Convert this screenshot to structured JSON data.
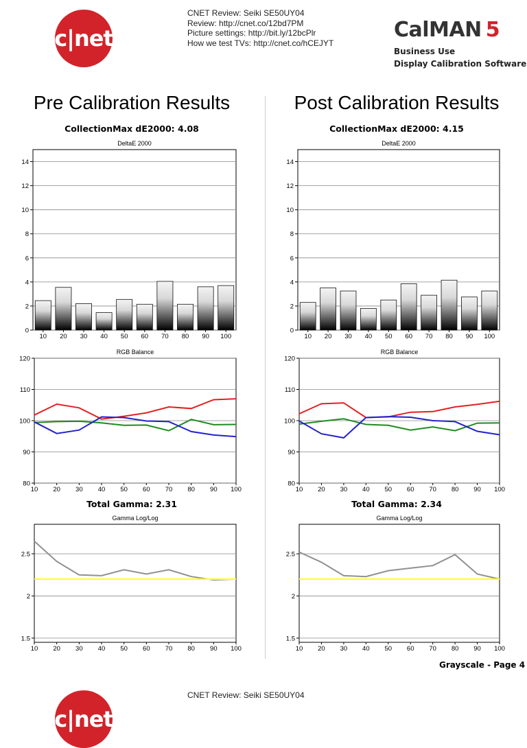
{
  "header": {
    "logo_text": "c|net",
    "lines": [
      "CNET Review: Seiki SE50UY04",
      "Review: http://cnet.co/12bd7PM",
      "Picture settings: http://bit.ly/12bcPlr",
      "How we test TVs: http://cnet.co/hCEJYT"
    ],
    "brand_word": "CalMAN",
    "brand_number": "5",
    "brand_sub1": "Business Use",
    "brand_sub2": "Display Calibration Software"
  },
  "pre": {
    "title": "Pre Calibration Results",
    "collection_max": "CollectionMax dE2000: 4.08",
    "total_gamma": "Total Gamma: 2.31"
  },
  "post": {
    "title": "Post Calibration Results",
    "collection_max": "CollectionMax dE2000: 4.15",
    "total_gamma": "Total Gamma: 2.34"
  },
  "footer": {
    "page_label": "Grayscale - Page 4",
    "lines": [
      "CNET Review: Seiki SE50UY04"
    ],
    "logo_text": "c|net"
  },
  "colors": {
    "red": "#e32020",
    "green": "#1f8a1f",
    "blue": "#2222cc",
    "gamma": "#909090",
    "target": "#ffff33"
  },
  "chart_data": [
    {
      "id": "pre-deltae",
      "type": "bar",
      "title": "DeltaE 2000",
      "categories": [
        "10",
        "20",
        "30",
        "40",
        "50",
        "60",
        "70",
        "80",
        "90",
        "100"
      ],
      "values": [
        2.45,
        3.55,
        2.2,
        1.45,
        2.55,
        2.15,
        4.05,
        2.15,
        3.6,
        3.7
      ],
      "ylim": [
        0,
        15
      ],
      "yticks": [
        0,
        2,
        4,
        6,
        8,
        10,
        12,
        14
      ]
    },
    {
      "id": "post-deltae",
      "type": "bar",
      "title": "DeltaE 2000",
      "categories": [
        "10",
        "20",
        "30",
        "40",
        "50",
        "60",
        "70",
        "80",
        "90",
        "100"
      ],
      "values": [
        2.3,
        3.5,
        3.25,
        1.8,
        2.5,
        3.85,
        2.9,
        4.15,
        2.75,
        3.25
      ],
      "ylim": [
        0,
        15
      ],
      "yticks": [
        0,
        2,
        4,
        6,
        8,
        10,
        12,
        14
      ]
    },
    {
      "id": "pre-rgb",
      "type": "line",
      "title": "RGB Balance",
      "x": [
        10,
        20,
        30,
        40,
        50,
        60,
        70,
        80,
        90,
        100
      ],
      "series": [
        {
          "color": "red",
          "values": [
            101.8,
            105.3,
            104.1,
            100.5,
            101.4,
            102.5,
            104.4,
            103.9,
            106.7,
            107.0
          ]
        },
        {
          "color": "green",
          "values": [
            99.4,
            99.7,
            99.8,
            99.3,
            98.5,
            98.6,
            96.8,
            100.4,
            98.7,
            98.8
          ]
        },
        {
          "color": "blue",
          "values": [
            99.6,
            95.9,
            97.0,
            101.2,
            101.0,
            99.9,
            99.7,
            96.5,
            95.4,
            94.9
          ]
        }
      ],
      "xlim": [
        10,
        100
      ],
      "ylim": [
        80,
        120
      ],
      "yticks": [
        80,
        90,
        100,
        110,
        120
      ]
    },
    {
      "id": "post-rgb",
      "type": "line",
      "title": "RGB Balance",
      "x": [
        10,
        20,
        30,
        40,
        50,
        60,
        70,
        80,
        90,
        100
      ],
      "series": [
        {
          "color": "red",
          "values": [
            102.2,
            105.4,
            105.7,
            101.0,
            101.2,
            102.7,
            102.9,
            104.4,
            105.2,
            106.2
          ]
        },
        {
          "color": "green",
          "values": [
            98.9,
            99.8,
            100.6,
            98.8,
            98.5,
            97.0,
            98.0,
            96.8,
            99.2,
            99.3
          ]
        },
        {
          "color": "blue",
          "values": [
            99.9,
            95.8,
            94.5,
            101.0,
            101.3,
            101.1,
            100.0,
            99.7,
            96.6,
            95.5
          ]
        }
      ],
      "xlim": [
        10,
        100
      ],
      "ylim": [
        80,
        120
      ],
      "yticks": [
        80,
        90,
        100,
        110,
        120
      ]
    },
    {
      "id": "pre-gamma",
      "type": "line",
      "title": "Gamma Log/Log",
      "x": [
        10,
        20,
        30,
        40,
        50,
        60,
        70,
        80,
        90,
        100
      ],
      "series": [
        {
          "color": "gamma",
          "values": [
            2.65,
            2.41,
            2.25,
            2.24,
            2.31,
            2.26,
            2.31,
            2.23,
            2.19,
            2.2
          ]
        },
        {
          "color": "target",
          "values": [
            2.2,
            2.2,
            2.2,
            2.2,
            2.2,
            2.2,
            2.2,
            2.2,
            2.2,
            2.2
          ]
        }
      ],
      "xlim": [
        10,
        100
      ],
      "ylim": [
        1.45,
        2.85
      ],
      "yticks": [
        1.5,
        2,
        2.5
      ],
      "ytick_labels": [
        "1.5",
        "2",
        "2.5"
      ]
    },
    {
      "id": "post-gamma",
      "type": "line",
      "title": "Gamma Log/Log",
      "x": [
        10,
        20,
        30,
        40,
        50,
        60,
        70,
        80,
        90,
        100
      ],
      "series": [
        {
          "color": "gamma",
          "values": [
            2.52,
            2.4,
            2.24,
            2.23,
            2.3,
            2.33,
            2.36,
            2.49,
            2.26,
            2.2
          ]
        },
        {
          "color": "target",
          "values": [
            2.2,
            2.2,
            2.2,
            2.2,
            2.2,
            2.2,
            2.2,
            2.2,
            2.2,
            2.2
          ]
        }
      ],
      "xlim": [
        10,
        100
      ],
      "ylim": [
        1.45,
        2.85
      ],
      "yticks": [
        1.5,
        2,
        2.5
      ],
      "ytick_labels": [
        "1.5",
        "2",
        "2.5"
      ]
    }
  ]
}
